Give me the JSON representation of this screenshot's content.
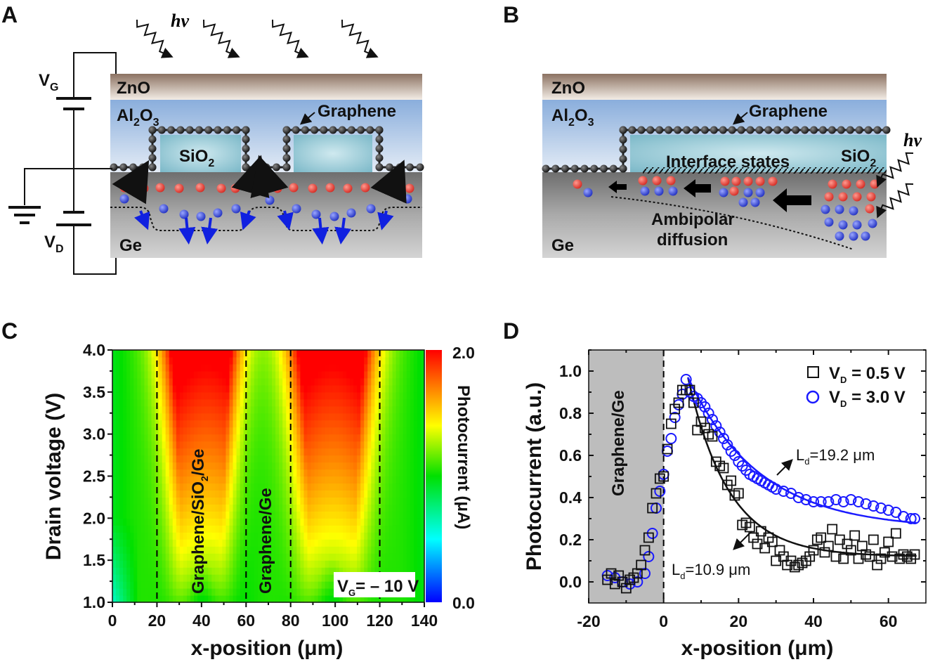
{
  "panels": {
    "a": "A",
    "b": "B",
    "c": "C",
    "d": "D"
  },
  "diagram_a": {
    "photon": "hv",
    "zno": "ZnO",
    "al2o3": {
      "main": "Al",
      "sub1": "2",
      "mid": "O",
      "sub2": "3"
    },
    "graphene": "Graphene",
    "sio2": {
      "main": "SiO",
      "sub": "2"
    },
    "ge": "Ge",
    "vg": {
      "main": "V",
      "sub": "G"
    },
    "vd": {
      "main": "V",
      "sub": "D"
    }
  },
  "diagram_b": {
    "photon": "hv",
    "zno": "ZnO",
    "al2o3": {
      "main": "Al",
      "sub1": "2",
      "mid": "O",
      "sub2": "3"
    },
    "graphene": "Graphene",
    "interface": "Interface states",
    "sio2": {
      "main": "SiO",
      "sub": "2"
    },
    "ambipolar": "Ambipolar",
    "diffusion": "diffusion",
    "ge": "Ge"
  },
  "colors": {
    "red_carrier": "#e8403a",
    "blue_carrier": "#3a4fd8",
    "series_open_square": "#111111",
    "series_circle": "#1a1aff"
  },
  "chart_data": [
    {
      "type": "heatmap",
      "xlabel": "x-position (μm)",
      "ylabel": "Drain voltage (V)",
      "xlim": [
        0,
        140
      ],
      "ylim": [
        1.0,
        4.0
      ],
      "xticks": [
        "0",
        "20",
        "40",
        "60",
        "80",
        "100",
        "120",
        "140"
      ],
      "yticks": [
        "1.0",
        "1.5",
        "2.0",
        "2.5",
        "3.0",
        "3.5",
        "4.0"
      ],
      "colorbar": {
        "label": "Photocurrent (μA)",
        "min": "0.0",
        "max": "2.0",
        "range": [
          0,
          2.0
        ]
      },
      "region_boundaries": [
        20,
        60,
        80,
        120
      ],
      "region_labels": [
        {
          "main": "Graphene/SiO",
          "sub": "2",
          "tail": "/Ge"
        },
        {
          "text": "Graphene/Ge"
        }
      ],
      "high_signal_regions": [
        [
          25,
          55
        ],
        [
          82,
          115
        ]
      ],
      "annotation": {
        "main": "V",
        "sub": "G",
        "tail": "= – 10 V"
      }
    },
    {
      "type": "scatter",
      "xlabel": "x-position (μm)",
      "ylabel": "Photocurrent (a.u.)",
      "xlim": [
        -20,
        70
      ],
      "ylim": [
        -0.1,
        1.1
      ],
      "xticks": [
        "-20",
        "0",
        "20",
        "40",
        "60"
      ],
      "yticks": [
        "0.0",
        "0.2",
        "0.4",
        "0.6",
        "0.8",
        "1.0"
      ],
      "shaded_region": {
        "range": [
          -20,
          0
        ],
        "label": "Graphene/Ge"
      },
      "legend_position": "top-right",
      "series": [
        {
          "name": "V_D = 0.5 V",
          "legend": {
            "main": "V",
            "sub": "D",
            "tail": " = 0.5 V"
          },
          "marker": "square",
          "x": [
            -15,
            -14,
            -13,
            -12,
            -11,
            -10,
            -9,
            -8,
            -7,
            -6,
            -5,
            -4,
            -3,
            -2,
            -1,
            0,
            1,
            2,
            3,
            4,
            5,
            6,
            7,
            8,
            9,
            10,
            11,
            12,
            13,
            14,
            15,
            16,
            17,
            18,
            19,
            20,
            21,
            22,
            23,
            24,
            25,
            26,
            27,
            28,
            29,
            30,
            31,
            32,
            33,
            34,
            35,
            36,
            37,
            38,
            39,
            40,
            41,
            42,
            43,
            44,
            45,
            46,
            47,
            48,
            49,
            50,
            51,
            52,
            53,
            54,
            55,
            56,
            57,
            58,
            59,
            60,
            61,
            62,
            63,
            64,
            65,
            66,
            67
          ],
          "y": [
            0.01,
            0.04,
            -0.01,
            0.03,
            0.0,
            -0.03,
            0.01,
            0.02,
            0.04,
            0.08,
            0.15,
            0.21,
            0.35,
            0.42,
            0.49,
            0.5,
            0.63,
            0.75,
            0.82,
            0.85,
            0.91,
            0.91,
            0.91,
            0.85,
            0.72,
            0.76,
            0.73,
            0.7,
            0.69,
            0.57,
            0.55,
            0.54,
            0.46,
            0.48,
            0.41,
            0.42,
            0.27,
            0.28,
            0.26,
            0.21,
            0.18,
            0.24,
            0.16,
            0.21,
            0.19,
            0.1,
            0.15,
            0.12,
            0.08,
            0.1,
            0.07,
            0.08,
            0.09,
            0.1,
            0.12,
            0.15,
            0.2,
            0.21,
            0.14,
            0.17,
            0.25,
            0.12,
            0.2,
            0.11,
            0.18,
            0.15,
            0.22,
            0.11,
            0.17,
            0.13,
            0.12,
            0.2,
            0.08,
            0.11,
            0.14,
            0.19,
            0.12,
            0.23,
            0.11,
            0.13,
            0.12,
            0.11,
            0.13
          ]
        },
        {
          "name": "V_D = 3.0 V",
          "legend": {
            "main": "V",
            "sub": "D",
            "tail": " = 3.0 V"
          },
          "marker": "circle",
          "x": [
            -15,
            -13,
            -11,
            -9,
            -7,
            -5,
            -4,
            -3,
            -2,
            -1,
            0,
            1,
            2,
            3,
            4,
            5,
            6,
            7,
            8,
            9,
            10,
            11,
            12,
            13,
            14,
            15,
            16,
            17,
            18,
            19,
            20,
            21,
            22,
            23,
            24,
            25,
            26,
            27,
            28,
            29,
            30,
            32,
            34,
            36,
            38,
            40,
            42,
            44,
            46,
            48,
            50,
            52,
            54,
            56,
            58,
            60,
            62,
            64,
            66,
            67
          ],
          "y": [
            0.03,
            0.02,
            0.0,
            -0.01,
            0.0,
            0.04,
            0.12,
            0.23,
            0.35,
            0.43,
            0.51,
            0.62,
            0.68,
            0.78,
            0.84,
            0.89,
            0.96,
            0.9,
            0.88,
            0.87,
            0.85,
            0.83,
            0.8,
            0.77,
            0.74,
            0.71,
            0.68,
            0.65,
            0.62,
            0.6,
            0.57,
            0.55,
            0.53,
            0.51,
            0.5,
            0.49,
            0.48,
            0.47,
            0.46,
            0.45,
            0.44,
            0.43,
            0.42,
            0.4,
            0.39,
            0.38,
            0.38,
            0.38,
            0.39,
            0.38,
            0.39,
            0.38,
            0.37,
            0.36,
            0.35,
            0.34,
            0.33,
            0.31,
            0.3,
            0.3
          ]
        }
      ],
      "fits": [
        {
          "series": "V_D = 0.5 V",
          "model": "exponential decay",
          "Ld_um": 10.9,
          "x0": 6.5,
          "amplitude": 0.85,
          "offset": 0.12,
          "label": {
            "main": "L",
            "sub": "d",
            "tail": "=10.9 μm"
          }
        },
        {
          "series": "V_D = 3.0 V",
          "model": "exponential decay",
          "Ld_um": 19.2,
          "x0": 6.5,
          "amplitude": 0.72,
          "offset": 0.25,
          "label": {
            "main": "L",
            "sub": "d",
            "tail": "=19.2 μm"
          }
        }
      ]
    }
  ]
}
